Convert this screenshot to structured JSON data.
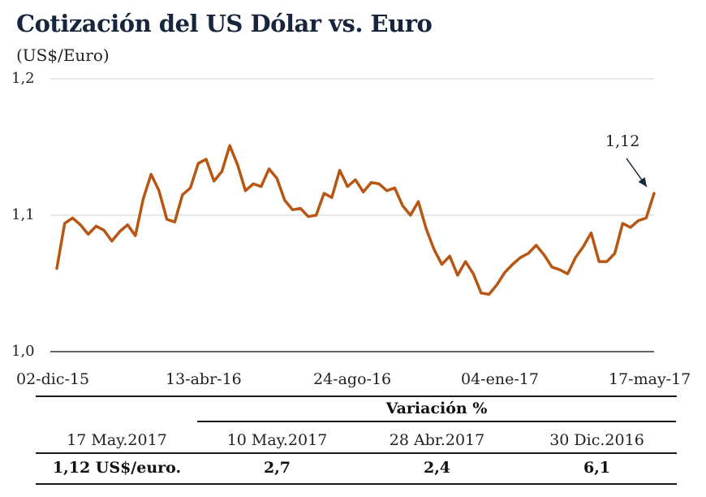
{
  "title": "Cotización del US Dólar vs. Euro",
  "subtitle": "(US$/Euro)",
  "chart_data": {
    "type": "line",
    "ylim": [
      1.0,
      1.2
    ],
    "yticks": [
      "1,2",
      "1,1",
      "1,0"
    ],
    "xticks": [
      "02-dic-15",
      "13-abr-16",
      "24-ago-16",
      "04-ene-17",
      "17-may-17"
    ],
    "grid": true,
    "color": "#b85614",
    "annotation": "1,12",
    "series": [
      {
        "x": [
          "2015-12-02",
          "2015-12-09",
          "2015-12-16",
          "2015-12-23",
          "2015-12-30",
          "2016-01-06",
          "2016-01-13",
          "2016-01-20",
          "2016-01-27",
          "2016-02-03",
          "2016-02-10",
          "2016-02-17",
          "2016-02-24",
          "2016-03-02",
          "2016-03-09",
          "2016-03-16",
          "2016-03-23",
          "2016-03-30",
          "2016-04-06",
          "2016-04-13",
          "2016-04-20",
          "2016-04-27",
          "2016-05-04",
          "2016-05-11",
          "2016-05-18",
          "2016-05-25",
          "2016-06-01",
          "2016-06-08",
          "2016-06-15",
          "2016-06-22",
          "2016-06-29",
          "2016-07-06",
          "2016-07-13",
          "2016-07-20",
          "2016-07-27",
          "2016-08-03",
          "2016-08-10",
          "2016-08-17",
          "2016-08-24",
          "2016-08-31",
          "2016-09-07",
          "2016-09-14",
          "2016-09-21",
          "2016-09-28",
          "2016-10-05",
          "2016-10-12",
          "2016-10-19",
          "2016-10-26",
          "2016-11-02",
          "2016-11-09",
          "2016-11-16",
          "2016-11-23",
          "2016-11-30",
          "2016-12-07",
          "2016-12-14",
          "2016-12-21",
          "2016-12-28",
          "2017-01-04",
          "2017-01-11",
          "2017-01-18",
          "2017-01-25",
          "2017-02-01",
          "2017-02-08",
          "2017-02-15",
          "2017-02-22",
          "2017-03-01",
          "2017-03-08",
          "2017-03-15",
          "2017-03-22",
          "2017-03-29",
          "2017-04-05",
          "2017-04-12",
          "2017-04-19",
          "2017-04-26",
          "2017-05-03",
          "2017-05-10",
          "2017-05-17"
        ],
        "values": [
          1.061,
          1.094,
          1.098,
          1.093,
          1.086,
          1.092,
          1.089,
          1.081,
          1.088,
          1.093,
          1.085,
          1.112,
          1.13,
          1.118,
          1.097,
          1.095,
          1.115,
          1.12,
          1.138,
          1.141,
          1.125,
          1.132,
          1.151,
          1.137,
          1.118,
          1.123,
          1.121,
          1.134,
          1.127,
          1.111,
          1.104,
          1.105,
          1.099,
          1.1,
          1.116,
          1.113,
          1.133,
          1.121,
          1.126,
          1.117,
          1.124,
          1.123,
          1.118,
          1.12,
          1.107,
          1.1,
          1.11,
          1.09,
          1.075,
          1.064,
          1.07,
          1.056,
          1.066,
          1.057,
          1.043,
          1.042,
          1.049,
          1.058,
          1.064,
          1.069,
          1.072,
          1.078,
          1.071,
          1.062,
          1.06,
          1.057,
          1.069,
          1.077,
          1.087,
          1.066,
          1.066,
          1.072,
          1.094,
          1.091,
          1.096,
          1.098,
          1.116
        ]
      }
    ]
  },
  "table": {
    "variation_header": "Variación %",
    "headers": [
      "17 May.2017",
      "10 May.2017",
      "28 Abr.2017",
      "30 Dic.2016"
    ],
    "values": [
      "1,12 US$/euro.",
      "2,7",
      "2,4",
      "6,1"
    ]
  }
}
